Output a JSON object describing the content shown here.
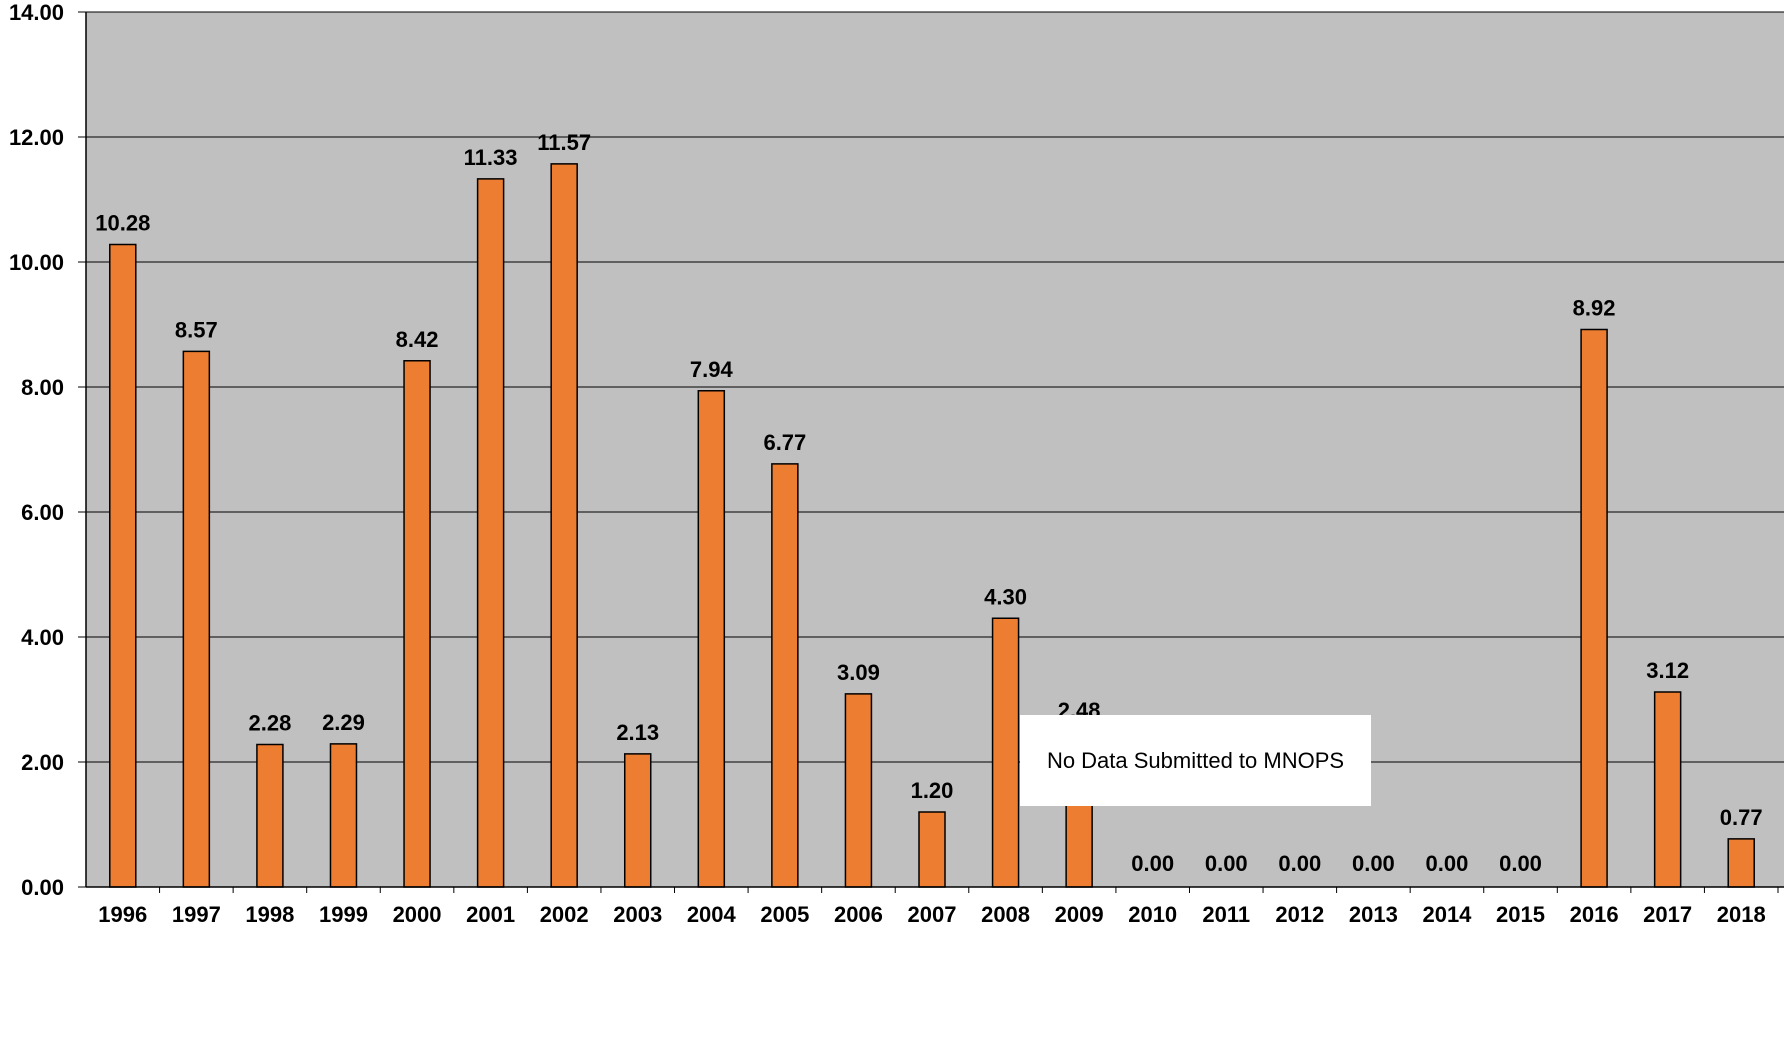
{
  "chart_data": {
    "type": "bar",
    "categories": [
      "1996",
      "1997",
      "1998",
      "1999",
      "2000",
      "2001",
      "2002",
      "2003",
      "2004",
      "2005",
      "2006",
      "2007",
      "2008",
      "2009",
      "2010",
      "2011",
      "2012",
      "2013",
      "2014",
      "2015",
      "2016",
      "2017",
      "2018"
    ],
    "values": [
      10.28,
      8.57,
      2.28,
      2.29,
      8.42,
      11.33,
      11.57,
      2.13,
      7.94,
      6.77,
      3.09,
      1.2,
      4.3,
      2.48,
      0.0,
      0.0,
      0.0,
      0.0,
      0.0,
      0.0,
      8.92,
      3.12,
      0.77
    ],
    "data_labels": [
      "10.28",
      "8.57",
      "2.28",
      "2.29",
      "8.42",
      "11.33",
      "11.57",
      "2.13",
      "7.94",
      "6.77",
      "3.09",
      "1.20",
      "4.30",
      "2.48",
      "0.00",
      "0.00",
      "0.00",
      "0.00",
      "0.00",
      "0.00",
      "8.92",
      "3.12",
      "0.77"
    ],
    "y_ticks": [
      "0.00",
      "2.00",
      "4.00",
      "6.00",
      "8.00",
      "10.00",
      "12.00",
      "14.00"
    ],
    "ylim": [
      0,
      14
    ],
    "grid": true,
    "title": "",
    "xlabel": "",
    "ylabel": "",
    "colors": {
      "bar": "#ED7D31",
      "bar_border": "#000000",
      "plot_background": "#C0C0C0",
      "gridline": "#000000"
    },
    "annotation": "No Data Submitted to MNOPS"
  }
}
